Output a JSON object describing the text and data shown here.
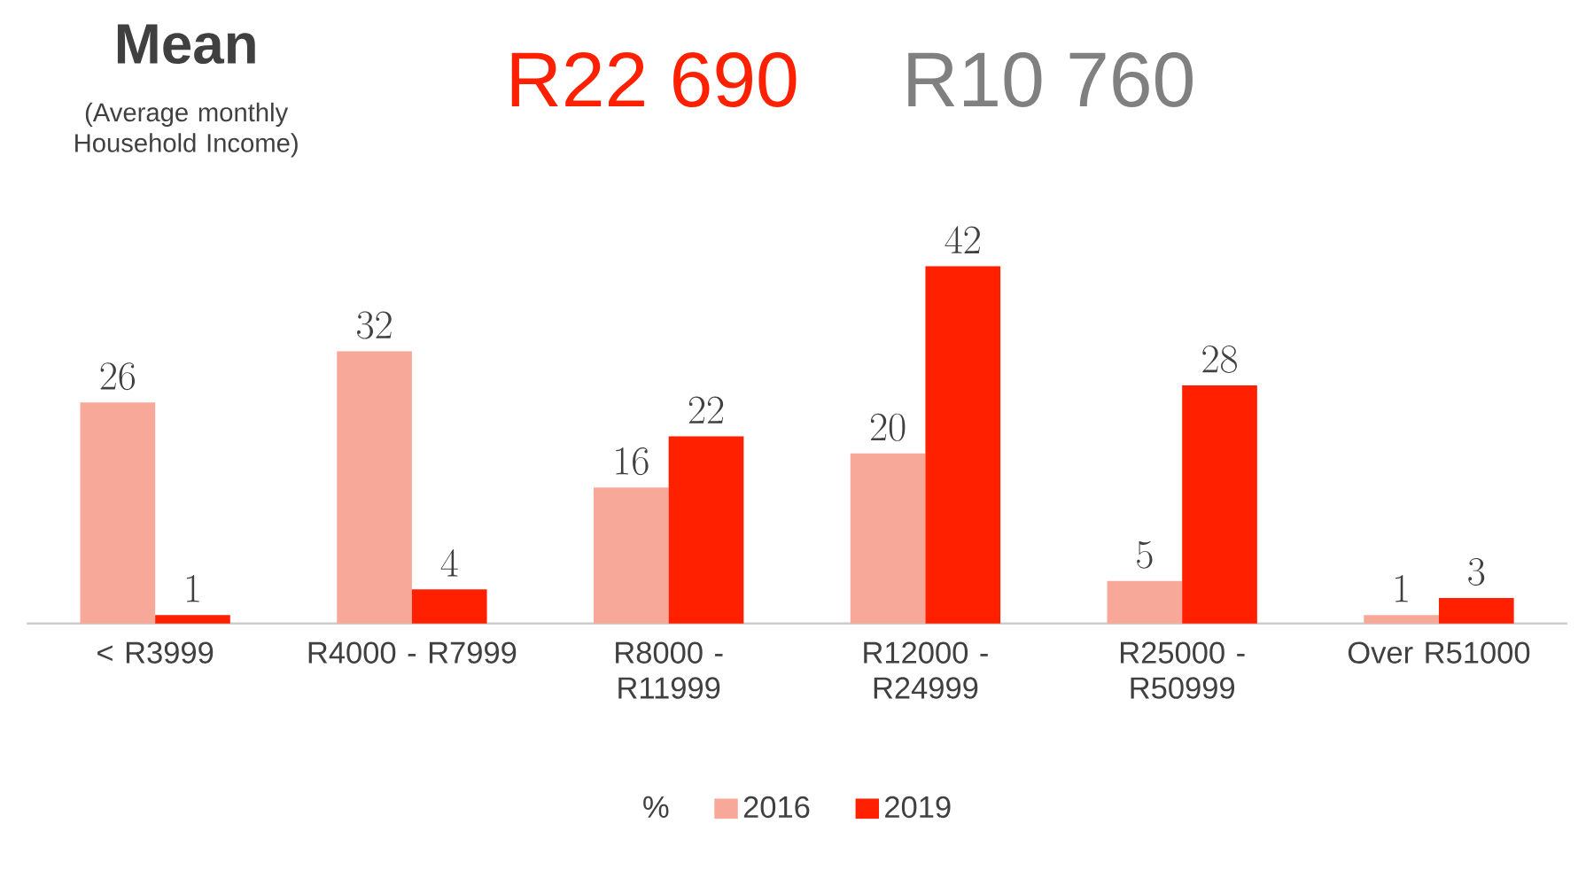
{
  "chart_data": {
    "type": "bar",
    "title": "Mean",
    "subtitle": "(Average monthly Household Income)",
    "annotations": [
      "R22 690",
      "R10 760"
    ],
    "categories": [
      "< R3999",
      "R4000 - R7999",
      "R8000 - R11999",
      "R12000 - R24999",
      "R25000 - R50999",
      "Over R51000"
    ],
    "series": [
      {
        "name": "2016",
        "color": "#f8a898",
        "values": [
          26,
          32,
          16,
          20,
          5,
          1
        ]
      },
      {
        "name": "2019",
        "color": "#ff2000",
        "values": [
          1,
          4,
          22,
          42,
          28,
          3
        ]
      }
    ],
    "legend_title": "%",
    "legend": "bottom",
    "data_labels": true,
    "tick_labels": "x"
  }
}
